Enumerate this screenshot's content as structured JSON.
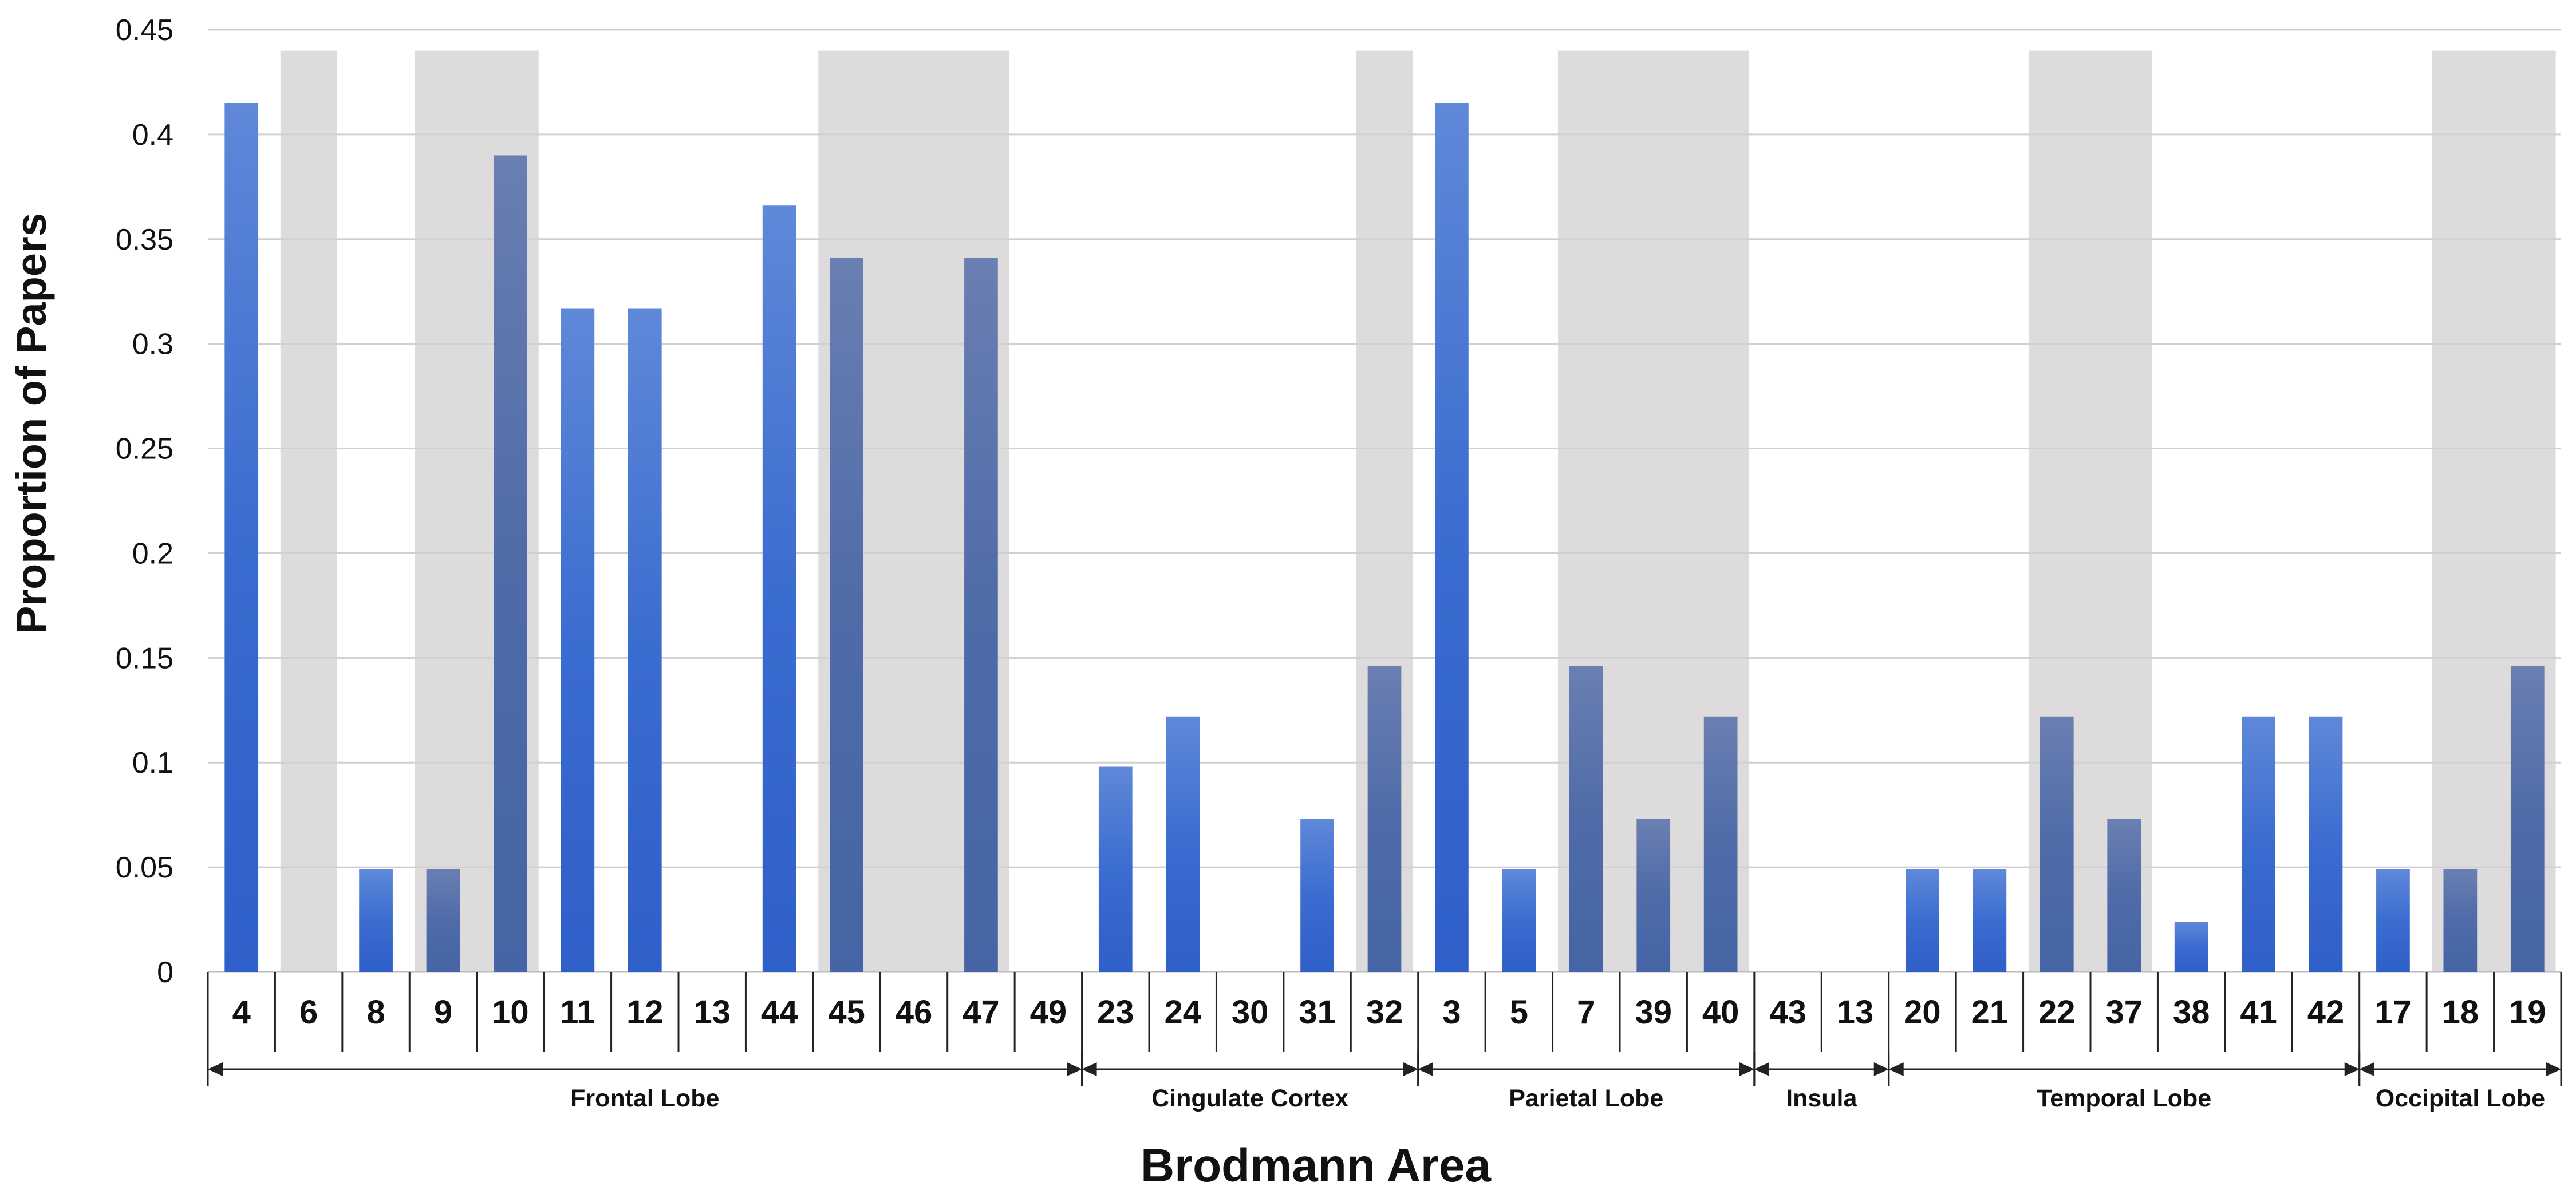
{
  "chart_data": {
    "type": "bar",
    "title": "",
    "xlabel": "Brodmann Area",
    "ylabel": "Proportion of Papers",
    "ylim": [
      0,
      0.45
    ],
    "yticks": [
      "0",
      "0.05",
      "0.1",
      "0.15",
      "0.2",
      "0.25",
      "0.3",
      "0.35",
      "0.4",
      "0.45"
    ],
    "grid": true,
    "categories": [
      "4",
      "6",
      "8",
      "9",
      "10",
      "11",
      "12",
      "13",
      "44",
      "45",
      "46",
      "47",
      "49",
      "23",
      "24",
      "30",
      "31",
      "32",
      "3",
      "5",
      "7",
      "39",
      "40",
      "43",
      "13",
      "20",
      "21",
      "22",
      "37",
      "38",
      "41",
      "42",
      "17",
      "18",
      "19"
    ],
    "values": [
      0.415,
      0,
      0.049,
      0.049,
      0.39,
      0.317,
      0.317,
      0,
      0.366,
      0.341,
      0,
      0.341,
      0,
      0.098,
      0.122,
      0,
      0.073,
      0.146,
      0.415,
      0.049,
      0.146,
      0.073,
      0.122,
      0,
      0,
      0.049,
      0.049,
      0.122,
      0.073,
      0.024,
      0.122,
      0.122,
      0.049,
      0.049,
      0.146
    ],
    "shaded": [
      false,
      true,
      false,
      true,
      true,
      false,
      false,
      false,
      false,
      true,
      true,
      true,
      false,
      false,
      false,
      false,
      false,
      true,
      false,
      false,
      true,
      true,
      true,
      false,
      false,
      false,
      false,
      true,
      true,
      false,
      false,
      false,
      false,
      true,
      true
    ],
    "groups": [
      {
        "label": "Frontal Lobe",
        "start": 0,
        "end": 12
      },
      {
        "label": "Cingulate Cortex",
        "start": 13,
        "end": 17
      },
      {
        "label": "Parietal Lobe",
        "start": 18,
        "end": 22
      },
      {
        "label": "Insula",
        "start": 23,
        "end": 24
      },
      {
        "label": "Temporal Lobe",
        "start": 25,
        "end": 31
      },
      {
        "label": "Occipital Lobe",
        "start": 32,
        "end": 34
      }
    ],
    "colors": {
      "bar_light": "#4a78d0",
      "bar_dark": "#5a73a8",
      "shade": "#dedbdc",
      "grid": "#d0d0d0"
    }
  }
}
